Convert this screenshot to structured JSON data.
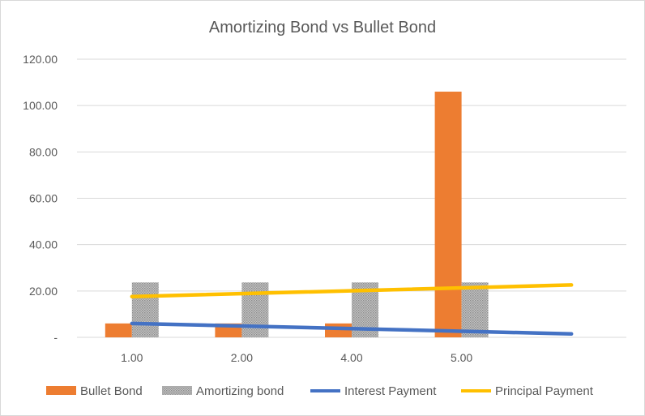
{
  "chart_data": {
    "type": "bar",
    "title": "Amortizing Bond vs Bullet Bond",
    "xlabel": "",
    "ylabel": "",
    "categories": [
      "1.00",
      "2.00",
      "4.00",
      "5.00"
    ],
    "ylim": [
      0,
      120
    ],
    "yticks": [
      0,
      20,
      40,
      60,
      80,
      100,
      120
    ],
    "ytick_labels": [
      "-",
      "20.00",
      "40.00",
      "60.00",
      "80.00",
      "100.00",
      "120.00"
    ],
    "grid": true,
    "legend_position": "bottom",
    "bar_series": [
      {
        "name": "Bullet Bond",
        "color": "#ed7d31",
        "values": [
          6,
          6,
          6,
          106
        ]
      },
      {
        "name": "Amortizing bond",
        "color": "#a5a5a5",
        "pattern": "dotted",
        "values": [
          23.7,
          23.7,
          23.7,
          23.7
        ]
      }
    ],
    "line_series": [
      {
        "name": "Interest Payment",
        "color": "#4472c4",
        "x_index": [
          0,
          4
        ],
        "values": [
          6.0,
          1.5
        ]
      },
      {
        "name": "Principal Payment",
        "color": "#ffc000",
        "x_index": [
          0,
          4
        ],
        "values": [
          17.6,
          22.6
        ]
      }
    ]
  }
}
